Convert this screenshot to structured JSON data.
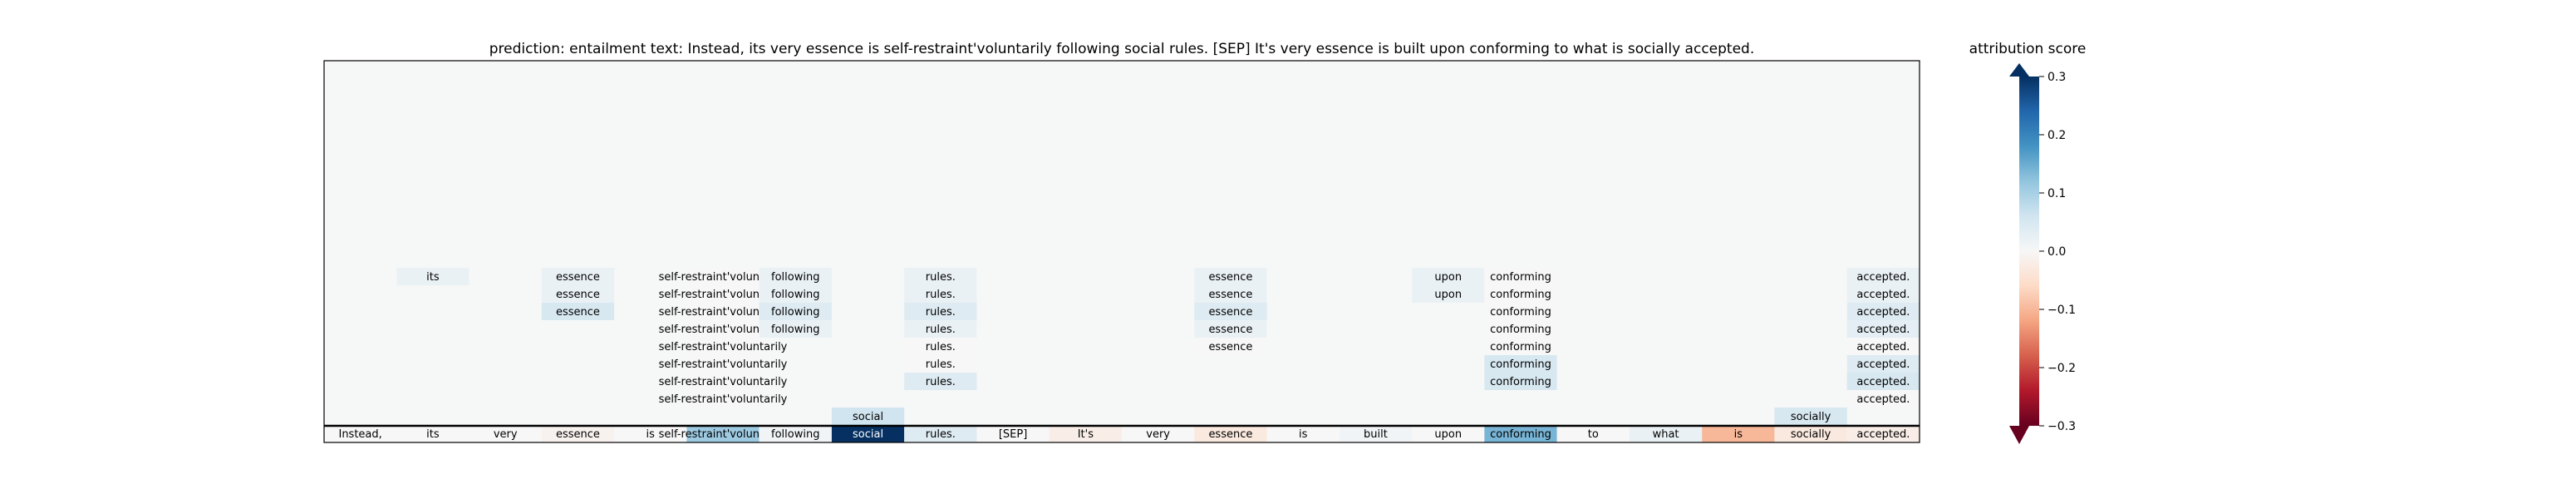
{
  "chart_data": {
    "type": "heatmap",
    "title": "prediction:  entailment     text:  Instead, its very essence is self-restraint'voluntarily following social rules. [SEP] It's very essence is built upon conforming to what is socially accepted.",
    "colorbar": {
      "label": "attribution score",
      "ticks": [
        0.3,
        0.2,
        0.1,
        0.0,
        -0.1,
        -0.2,
        -0.3
      ],
      "tick_labels": [
        "0.3",
        "0.2",
        "0.1",
        "0.0",
        "−0.1",
        "−0.2",
        "−0.3"
      ],
      "range": [
        -0.3,
        0.3
      ],
      "colormap": "RdBu",
      "extend": "both"
    },
    "tokens": [
      "Instead,",
      "its",
      "very",
      "essence",
      "is",
      "self-restraint'voluntarily",
      "following",
      "social",
      "rules.",
      "[SEP]",
      "It's",
      "very",
      "essence",
      "is",
      "built",
      "upon",
      "conforming",
      "to",
      "what",
      "is",
      "socially",
      "accepted."
    ],
    "token_scores": [
      0.0,
      0.0,
      0.0,
      -0.01,
      0.0,
      0.11,
      0.01,
      0.32,
      0.04,
      0.0,
      -0.02,
      0.0,
      -0.03,
      0.0,
      0.01,
      0.0,
      0.14,
      0.0,
      0.02,
      -0.1,
      -0.03,
      -0.02
    ],
    "layers": [
      [
        {
          "t": 20,
          "v": 0.05
        },
        {
          "t": 7,
          "v": 0.06
        }
      ],
      [
        {
          "t": 5,
          "v": 0.0
        },
        {
          "t": 21,
          "v": 0.0
        }
      ],
      [
        {
          "t": 5,
          "v": 0.0
        },
        {
          "t": 8,
          "v": 0.04
        },
        {
          "t": 16,
          "v": 0.05
        },
        {
          "t": 21,
          "v": 0.05
        }
      ],
      [
        {
          "t": 5,
          "v": 0.0
        },
        {
          "t": 8,
          "v": 0.0
        },
        {
          "t": 16,
          "v": 0.05
        },
        {
          "t": 21,
          "v": 0.04
        }
      ],
      [
        {
          "t": 5,
          "v": 0.0
        },
        {
          "t": 8,
          "v": 0.0
        },
        {
          "t": 12,
          "v": 0.0
        },
        {
          "t": 16,
          "v": 0.0
        },
        {
          "t": 21,
          "v": 0.0
        }
      ],
      [
        {
          "t": 5,
          "v": 0.0
        },
        {
          "t": 6,
          "v": 0.02
        },
        {
          "t": 8,
          "v": 0.02
        },
        {
          "t": 12,
          "v": 0.02
        },
        {
          "t": 16,
          "v": 0.0
        },
        {
          "t": 21,
          "v": 0.03
        }
      ],
      [
        {
          "t": 3,
          "v": 0.05
        },
        {
          "t": 5,
          "v": 0.0
        },
        {
          "t": 6,
          "v": 0.04
        },
        {
          "t": 8,
          "v": 0.04
        },
        {
          "t": 12,
          "v": 0.04
        },
        {
          "t": 16,
          "v": 0.0
        },
        {
          "t": 21,
          "v": 0.04
        }
      ],
      [
        {
          "t": 3,
          "v": 0.02
        },
        {
          "t": 5,
          "v": 0.0
        },
        {
          "t": 6,
          "v": 0.02
        },
        {
          "t": 8,
          "v": 0.02
        },
        {
          "t": 12,
          "v": 0.02
        },
        {
          "t": 15,
          "v": 0.02
        },
        {
          "t": 16,
          "v": 0.0
        },
        {
          "t": 21,
          "v": 0.02
        }
      ],
      [
        {
          "t": 1,
          "v": 0.02
        },
        {
          "t": 3,
          "v": 0.02
        },
        {
          "t": 5,
          "v": 0.0
        },
        {
          "t": 6,
          "v": 0.02
        },
        {
          "t": 8,
          "v": 0.02
        },
        {
          "t": 12,
          "v": 0.02
        },
        {
          "t": 15,
          "v": 0.02
        },
        {
          "t": 16,
          "v": 0.0
        },
        {
          "t": 21,
          "v": 0.02
        }
      ]
    ],
    "grid": false
  }
}
